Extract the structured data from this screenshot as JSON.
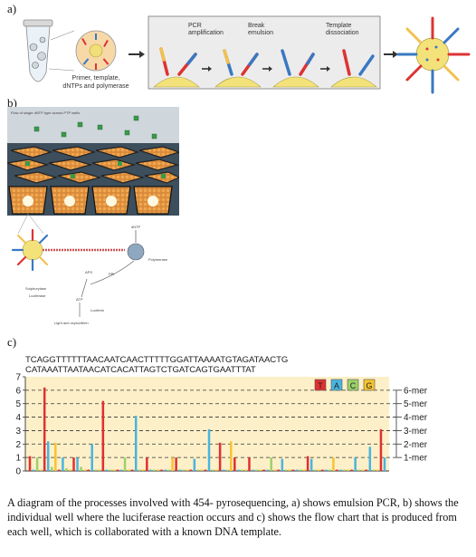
{
  "labels": {
    "a": "a)",
    "b": "b)",
    "c": "c)"
  },
  "panel_a": {
    "reagents": [
      "Primer, template,",
      "dNTPs and polymerase"
    ],
    "steps": [
      [
        "PCR",
        "amplification"
      ],
      [
        "Break",
        "emulsion"
      ],
      [
        "Template",
        "dissociation"
      ]
    ]
  },
  "panel_b": {
    "header": "Flow of single dNTP type across PTP wells",
    "labels": {
      "dntp": "dNTP",
      "polymerase": "Polymerase",
      "ppi": "PPi",
      "aps": "APS",
      "sulphurylase": "Sulphurylase",
      "luciferase": "Luciferase",
      "atp": "ATP",
      "luciferin": "Luciferin",
      "light": "Light and oxyluciferin"
    }
  },
  "panel_c": {
    "sequence_line1": "TCAGGTTTTTTAACAATCAACTTTTTGGATTAAAATGTAGATAACTG",
    "sequence_line2": "CATAAATTAATAACATCACATTAGTCTGATCAGTGAATTTAT"
  },
  "chart_data": {
    "type": "bar",
    "title": "",
    "xlabel": "",
    "ylabel": "",
    "ylim": [
      0,
      7
    ],
    "yticks": [
      "0",
      "1",
      "2",
      "3",
      "4",
      "5",
      "6",
      "7"
    ],
    "right_ticks": [
      "1-mer",
      "2-mer",
      "3-mer",
      "4-mer",
      "5-mer",
      "6-mer"
    ],
    "legend": [
      "T",
      "A",
      "C",
      "G"
    ],
    "legend_position": "top-right",
    "grid": "dashed horizontal lines at integer mer levels",
    "colors": {
      "T": "#e03030",
      "A": "#4ab4e0",
      "C": "#9bd16a",
      "G": "#f4c430",
      "background": "#fdf0c8"
    },
    "bases_cycle": [
      "T",
      "A",
      "C",
      "G"
    ],
    "values": [
      1.1,
      0.1,
      1.0,
      0.1,
      6.2,
      2.2,
      0.3,
      2.1,
      0.1,
      1.0,
      0.2,
      0.1,
      1.0,
      1.0,
      0.3,
      0.1,
      0.1,
      2.0,
      0.1,
      0.1,
      5.2,
      0.1,
      0.1,
      0.1,
      0.1,
      0.1,
      1.0,
      0.1,
      0.1,
      4.1,
      0.1,
      0.1,
      1.0,
      0.1,
      0.1,
      0.1,
      0.1,
      0.1,
      0.1,
      1.0,
      1.0,
      0.1,
      0.1,
      0.1,
      0.1,
      0.9,
      0.1,
      0.1,
      0.1,
      3.1,
      0.1,
      0.1,
      2.1,
      0.1,
      0.1,
      2.2,
      1.0,
      0.1,
      0.1,
      0.1,
      1.0,
      0.1,
      0.1,
      0.1,
      0.1,
      0.1,
      1.0,
      0.1,
      0.1,
      0.9,
      0.1,
      0.1,
      0.1,
      0.1,
      0.1,
      0.1,
      1.1,
      0.9,
      0.1,
      0.1,
      0.1,
      0.1,
      0.1,
      1.0,
      0.1,
      0.1,
      0.1,
      0.1,
      0.1,
      1.0,
      0.1,
      0.1,
      0.1,
      1.8,
      0.1,
      0.1,
      3.1,
      1.0
    ]
  },
  "caption": "A diagram of the processes involved with 454- pyrosequencing, a) shows emulsion PCR, b) shows the individual well where the luciferase reaction occurs and c) shows the flow chart that is produced from each well, which is collaborated with a known DNA template."
}
